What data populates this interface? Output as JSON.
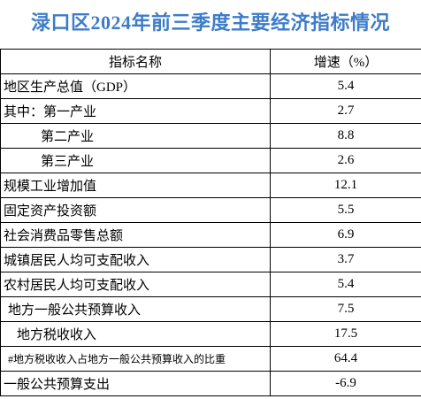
{
  "title": "渌口区2024年前三季度主要经济指标情况",
  "table": {
    "header": [
      "指标名称",
      "增速（%）"
    ],
    "rows": [
      [
        "地区生产总值（GDP）",
        5.4
      ],
      [
        "其中：第一产业",
        2.7
      ],
      [
        "第二产业",
        8.8
      ],
      [
        "第三产业",
        2.6
      ],
      [
        "规模工业增加值",
        12.1
      ],
      [
        "固定资产投资额",
        5.5
      ],
      [
        "社会消费品零售总额",
        6.9
      ],
      [
        "城镇居民人均可支配收入",
        3.7
      ],
      [
        "农村居民人均可支配收入",
        5.4
      ],
      [
        "地方一般公共预算收入",
        7.5
      ],
      [
        "地方税收收入",
        17.5
      ],
      [
        "#地方税收收入占地方一般公共预算收入的比重",
        64.4
      ],
      [
        "一般公共预算支出",
        -6.9
      ]
    ]
  }
}
